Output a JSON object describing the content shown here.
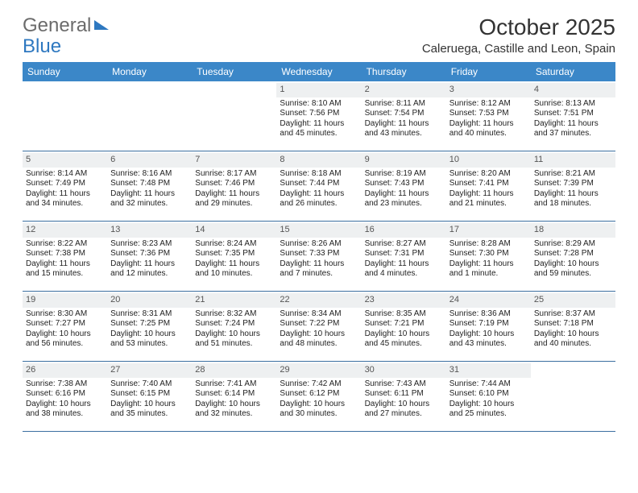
{
  "logo": {
    "part1": "General",
    "part2": "Blue"
  },
  "title": "October 2025",
  "location": "Caleruega, Castille and Leon, Spain",
  "colors": {
    "header_bg": "#3b87c8",
    "header_text": "#ffffff",
    "daynum_bg": "#eef0f1",
    "border": "#3b6fa0",
    "logo_gray": "#6b6b6b",
    "logo_blue": "#2e78c0"
  },
  "daysOfWeek": [
    "Sunday",
    "Monday",
    "Tuesday",
    "Wednesday",
    "Thursday",
    "Friday",
    "Saturday"
  ],
  "weeks": [
    [
      {
        "n": "",
        "sr": "",
        "ss": "",
        "dl": ""
      },
      {
        "n": "",
        "sr": "",
        "ss": "",
        "dl": ""
      },
      {
        "n": "",
        "sr": "",
        "ss": "",
        "dl": ""
      },
      {
        "n": "1",
        "sr": "8:10 AM",
        "ss": "7:56 PM",
        "dl": "11 hours and 45 minutes."
      },
      {
        "n": "2",
        "sr": "8:11 AM",
        "ss": "7:54 PM",
        "dl": "11 hours and 43 minutes."
      },
      {
        "n": "3",
        "sr": "8:12 AM",
        "ss": "7:53 PM",
        "dl": "11 hours and 40 minutes."
      },
      {
        "n": "4",
        "sr": "8:13 AM",
        "ss": "7:51 PM",
        "dl": "11 hours and 37 minutes."
      }
    ],
    [
      {
        "n": "5",
        "sr": "8:14 AM",
        "ss": "7:49 PM",
        "dl": "11 hours and 34 minutes."
      },
      {
        "n": "6",
        "sr": "8:16 AM",
        "ss": "7:48 PM",
        "dl": "11 hours and 32 minutes."
      },
      {
        "n": "7",
        "sr": "8:17 AM",
        "ss": "7:46 PM",
        "dl": "11 hours and 29 minutes."
      },
      {
        "n": "8",
        "sr": "8:18 AM",
        "ss": "7:44 PM",
        "dl": "11 hours and 26 minutes."
      },
      {
        "n": "9",
        "sr": "8:19 AM",
        "ss": "7:43 PM",
        "dl": "11 hours and 23 minutes."
      },
      {
        "n": "10",
        "sr": "8:20 AM",
        "ss": "7:41 PM",
        "dl": "11 hours and 21 minutes."
      },
      {
        "n": "11",
        "sr": "8:21 AM",
        "ss": "7:39 PM",
        "dl": "11 hours and 18 minutes."
      }
    ],
    [
      {
        "n": "12",
        "sr": "8:22 AM",
        "ss": "7:38 PM",
        "dl": "11 hours and 15 minutes."
      },
      {
        "n": "13",
        "sr": "8:23 AM",
        "ss": "7:36 PM",
        "dl": "11 hours and 12 minutes."
      },
      {
        "n": "14",
        "sr": "8:24 AM",
        "ss": "7:35 PM",
        "dl": "11 hours and 10 minutes."
      },
      {
        "n": "15",
        "sr": "8:26 AM",
        "ss": "7:33 PM",
        "dl": "11 hours and 7 minutes."
      },
      {
        "n": "16",
        "sr": "8:27 AM",
        "ss": "7:31 PM",
        "dl": "11 hours and 4 minutes."
      },
      {
        "n": "17",
        "sr": "8:28 AM",
        "ss": "7:30 PM",
        "dl": "11 hours and 1 minute."
      },
      {
        "n": "18",
        "sr": "8:29 AM",
        "ss": "7:28 PM",
        "dl": "10 hours and 59 minutes."
      }
    ],
    [
      {
        "n": "19",
        "sr": "8:30 AM",
        "ss": "7:27 PM",
        "dl": "10 hours and 56 minutes."
      },
      {
        "n": "20",
        "sr": "8:31 AM",
        "ss": "7:25 PM",
        "dl": "10 hours and 53 minutes."
      },
      {
        "n": "21",
        "sr": "8:32 AM",
        "ss": "7:24 PM",
        "dl": "10 hours and 51 minutes."
      },
      {
        "n": "22",
        "sr": "8:34 AM",
        "ss": "7:22 PM",
        "dl": "10 hours and 48 minutes."
      },
      {
        "n": "23",
        "sr": "8:35 AM",
        "ss": "7:21 PM",
        "dl": "10 hours and 45 minutes."
      },
      {
        "n": "24",
        "sr": "8:36 AM",
        "ss": "7:19 PM",
        "dl": "10 hours and 43 minutes."
      },
      {
        "n": "25",
        "sr": "8:37 AM",
        "ss": "7:18 PM",
        "dl": "10 hours and 40 minutes."
      }
    ],
    [
      {
        "n": "26",
        "sr": "7:38 AM",
        "ss": "6:16 PM",
        "dl": "10 hours and 38 minutes."
      },
      {
        "n": "27",
        "sr": "7:40 AM",
        "ss": "6:15 PM",
        "dl": "10 hours and 35 minutes."
      },
      {
        "n": "28",
        "sr": "7:41 AM",
        "ss": "6:14 PM",
        "dl": "10 hours and 32 minutes."
      },
      {
        "n": "29",
        "sr": "7:42 AM",
        "ss": "6:12 PM",
        "dl": "10 hours and 30 minutes."
      },
      {
        "n": "30",
        "sr": "7:43 AM",
        "ss": "6:11 PM",
        "dl": "10 hours and 27 minutes."
      },
      {
        "n": "31",
        "sr": "7:44 AM",
        "ss": "6:10 PM",
        "dl": "10 hours and 25 minutes."
      },
      {
        "n": "",
        "sr": "",
        "ss": "",
        "dl": ""
      }
    ]
  ],
  "labels": {
    "sunrise": "Sunrise: ",
    "sunset": "Sunset: ",
    "daylight": "Daylight: "
  }
}
